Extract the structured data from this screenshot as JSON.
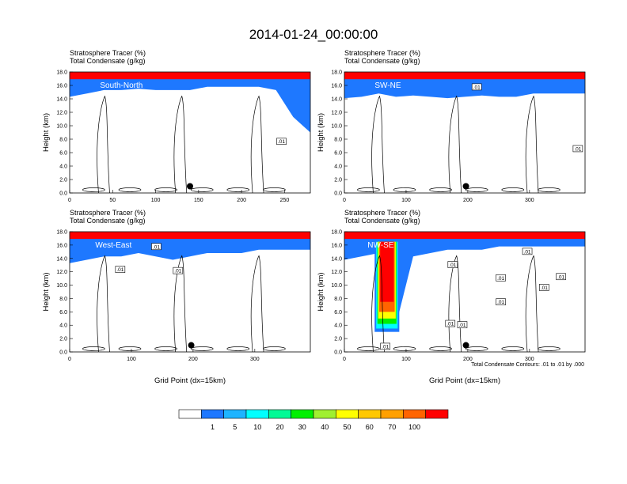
{
  "title": "2014-01-24_00:00:00",
  "colorbar": {
    "colors": [
      "#ffffff",
      "#1e78ff",
      "#1eb4ff",
      "#00ffff",
      "#00fa96",
      "#00f000",
      "#a0f030",
      "#ffff00",
      "#ffc800",
      "#ffa000",
      "#ff6400",
      "#ff0000"
    ],
    "labels": [
      "1",
      "5",
      "10",
      "20",
      "30",
      "40",
      "50",
      "60",
      "70",
      "100"
    ]
  },
  "contour_note": "Total Condensate Contours: .01 to .01 by .000",
  "chart_data": [
    {
      "type": "heatmap",
      "name": "South-North",
      "var1_label": "Stratosphere Tracer",
      "var1_units": "(%)",
      "var2_label": "Total Condensate",
      "var2_units": "(g/kg)",
      "ylabel": "Height (km)",
      "xlabel": "",
      "xlim": [
        0,
        280
      ],
      "ylim": [
        0,
        18
      ],
      "x_ticks": [
        "0",
        "50",
        "100",
        "150",
        "200",
        "250"
      ],
      "y_ticks": [
        "0.0",
        "2.0",
        "4.0",
        "6.0",
        "8.0",
        "10.0",
        "12.0",
        "14.0",
        "16.0",
        "18.0"
      ],
      "marker": {
        "x": 140,
        "y": 1.0
      },
      "contour_labels": [
        ".01"
      ],
      "tropopause_base_km": [
        14.0,
        14.5,
        15.0,
        15.0,
        15.2,
        15.0,
        15.0,
        15.0,
        15.5,
        15.5,
        15.5,
        15.5,
        15.0,
        11.0,
        9.0
      ]
    },
    {
      "type": "heatmap",
      "name": "SW-NE",
      "var1_label": "Stratosphere Tracer",
      "var1_units": "(%)",
      "var2_label": "Total Condensate",
      "var2_units": "(g/kg)",
      "ylabel": "Height (km)",
      "xlabel": "",
      "xlim": [
        0,
        390
      ],
      "ylim": [
        0,
        18
      ],
      "x_ticks": [
        "0",
        "100",
        "200",
        "300"
      ],
      "y_ticks": [
        "0.0",
        "2.0",
        "4.0",
        "6.0",
        "8.0",
        "10.0",
        "12.0",
        "14.0",
        "16.0",
        "18.0"
      ],
      "marker": {
        "x": 197,
        "y": 1.0
      },
      "contour_labels": [
        ".01",
        ".01"
      ],
      "tropopause_base_km": [
        13.8,
        14.0,
        14.5,
        14.0,
        14.2,
        14.0,
        13.8,
        14.0,
        14.2,
        14.0,
        14.0,
        14.5,
        14.5,
        14.5,
        14.5
      ]
    },
    {
      "type": "heatmap",
      "name": "West-East",
      "var1_label": "Stratosphere Tracer",
      "var1_units": "(%)",
      "var2_label": "Total Condensate",
      "var2_units": "(g/kg)",
      "ylabel": "Height (km)",
      "xlabel": "Grid Point (dx=15km)",
      "xlim": [
        0,
        390
      ],
      "ylim": [
        0,
        18
      ],
      "x_ticks": [
        "0",
        "100",
        "200",
        "300"
      ],
      "y_ticks": [
        "0.0",
        "2.0",
        "4.0",
        "6.0",
        "8.0",
        "10.0",
        "12.0",
        "14.0",
        "16.0",
        "18.0"
      ],
      "marker": {
        "x": 197,
        "y": 1.0
      },
      "contour_labels": [
        ".01",
        ".01",
        ".01"
      ],
      "tropopause_base_km": [
        13.0,
        13.5,
        14.0,
        14.0,
        14.5,
        14.0,
        13.5,
        14.0,
        14.5,
        14.5,
        14.5,
        15.0,
        15.0,
        15.0,
        15.0
      ]
    },
    {
      "type": "heatmap",
      "name": "NW-SE",
      "var1_label": "Stratosphere Tracer",
      "var1_units": "(%)",
      "var2_label": "Total Condensate",
      "var2_units": "(g/kg)",
      "ylabel": "Height (km)",
      "xlabel": "Grid Point (dx=15km)",
      "xlim": [
        0,
        390
      ],
      "ylim": [
        0,
        18
      ],
      "x_ticks": [
        "0",
        "100",
        "200",
        "300"
      ],
      "y_ticks": [
        "0.0",
        "2.0",
        "4.0",
        "6.0",
        "8.0",
        "10.0",
        "12.0",
        "14.0",
        "16.0",
        "18.0"
      ],
      "marker": {
        "x": 197,
        "y": 1.0
      },
      "contour_labels": [
        ".01",
        ".01",
        ".01",
        ".01",
        ".01",
        ".01",
        ".01",
        ".01",
        ".01"
      ],
      "tropopause_base_km": [
        13.5,
        14.0,
        14.5,
        4.0,
        14.0,
        14.5,
        15.0,
        15.0,
        15.0,
        15.5,
        15.5,
        15.5,
        15.5,
        15.5,
        15.5
      ]
    }
  ]
}
